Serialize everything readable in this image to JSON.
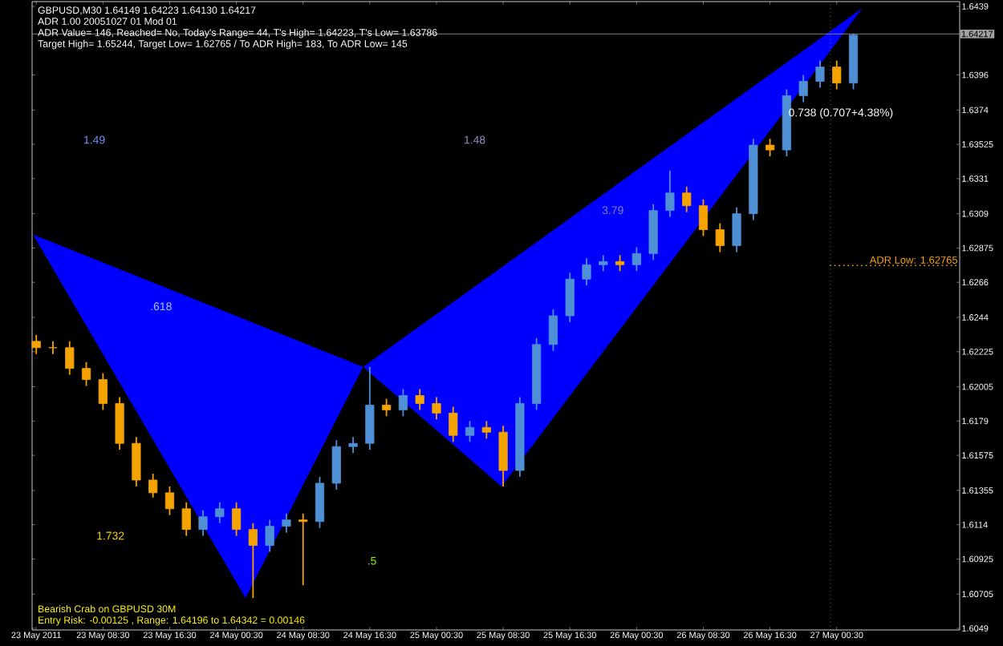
{
  "chart_data": {
    "type": "candlestick",
    "title": "GBPUSD,M30  1.64149 1.64223 1.64130 1.64217",
    "subtitle": "ADR 1.00 20051027 01 Mod 01",
    "annotations": [
      "ADR Value= 146, Reached= No, Today's Range= 44, T's High= 1.64223, T's Low= 1.63786",
      "Target High= 1.65244, Target Low= 1.62765 / To ADR High= 183, To ADR Low= 145",
      "Bearish Crab on GBPUSD 30M",
      "Entry Risk: -0.00125 , Range: 1.64196 to 1.64342 = 0.00146",
      ".618",
      "1.732",
      ".5",
      "3.79",
      "1.49",
      "1.48",
      "0.738 (0.707+4.38%)"
    ],
    "x": [
      "2011-05-23T00:30",
      "2011-05-23T02:30",
      "2011-05-23T04:30",
      "2011-05-23T06:30",
      "2011-05-23T08:30",
      "2011-05-23T10:30",
      "2011-05-23T12:30",
      "2011-05-23T14:30",
      "2011-05-23T16:30",
      "2011-05-23T18:30",
      "2011-05-23T20:30",
      "2011-05-23T22:30",
      "2011-05-24T00:30",
      "2011-05-24T02:30",
      "2011-05-24T04:30",
      "2011-05-24T06:30",
      "2011-05-24T08:30",
      "2011-05-24T10:30",
      "2011-05-24T12:30",
      "2011-05-24T14:30",
      "2011-05-24T16:30",
      "2011-05-24T18:30",
      "2011-05-24T20:30",
      "2011-05-24T22:30",
      "2011-05-25T00:30",
      "2011-05-25T02:30",
      "2011-05-25T04:30",
      "2011-05-25T06:30",
      "2011-05-25T08:30",
      "2011-05-25T10:30",
      "2011-05-25T12:30",
      "2011-05-25T14:30",
      "2011-05-25T16:30",
      "2011-05-25T18:30",
      "2011-05-25T20:30",
      "2011-05-25T22:30",
      "2011-05-26T00:30",
      "2011-05-26T02:30",
      "2011-05-26T04:30",
      "2011-05-26T06:30",
      "2011-05-26T08:30",
      "2011-05-26T10:30",
      "2011-05-26T12:30",
      "2011-05-26T14:30",
      "2011-05-26T16:30",
      "2011-05-26T18:30",
      "2011-05-26T20:30",
      "2011-05-26T22:30",
      "2011-05-27T00:30",
      "2011-05-27T02:30"
    ],
    "ohlc": [
      [
        1.6229,
        1.6233,
        1.6221,
        1.6225
      ],
      [
        1.6225,
        1.6229,
        1.6221,
        1.6225
      ],
      [
        1.6225,
        1.6229,
        1.6208,
        1.6212
      ],
      [
        1.6212,
        1.6216,
        1.6201,
        1.6205
      ],
      [
        1.6205,
        1.6209,
        1.6186,
        1.619
      ],
      [
        1.619,
        1.6194,
        1.6161,
        1.6165
      ],
      [
        1.6165,
        1.6169,
        1.6138,
        1.6142
      ],
      [
        1.6142,
        1.6146,
        1.6131,
        1.6134
      ],
      [
        1.6134,
        1.6138,
        1.612,
        1.6124
      ],
      [
        1.6124,
        1.6128,
        1.6107,
        1.6111
      ],
      [
        1.6111,
        1.6123,
        1.6107,
        1.6119
      ],
      [
        1.6119,
        1.6128,
        1.6115,
        1.6124
      ],
      [
        1.6124,
        1.6128,
        1.6107,
        1.6111
      ],
      [
        1.6111,
        1.6115,
        1.6068,
        1.6101
      ],
      [
        1.6101,
        1.6117,
        1.6097,
        1.6113
      ],
      [
        1.6113,
        1.6121,
        1.6109,
        1.6117
      ],
      [
        1.6117,
        1.6121,
        1.6076,
        1.6116
      ],
      [
        1.6116,
        1.6144,
        1.6112,
        1.614
      ],
      [
        1.614,
        1.6167,
        1.6136,
        1.6163
      ],
      [
        1.6163,
        1.6169,
        1.6159,
        1.6165
      ],
      [
        1.6165,
        1.6213,
        1.6161,
        1.6189
      ],
      [
        1.6189,
        1.6193,
        1.6182,
        1.6186
      ],
      [
        1.6186,
        1.6199,
        1.6182,
        1.6195
      ],
      [
        1.6195,
        1.6199,
        1.6186,
        1.619
      ],
      [
        1.619,
        1.6194,
        1.618,
        1.6184
      ],
      [
        1.6184,
        1.6188,
        1.6166,
        1.617
      ],
      [
        1.617,
        1.6179,
        1.6166,
        1.6175
      ],
      [
        1.6175,
        1.6179,
        1.6168,
        1.6172
      ],
      [
        1.6172,
        1.6176,
        1.6138,
        1.6148
      ],
      [
        1.6148,
        1.6194,
        1.6144,
        1.619
      ],
      [
        1.619,
        1.6231,
        1.6186,
        1.6227
      ],
      [
        1.6227,
        1.6249,
        1.6223,
        1.6245
      ],
      [
        1.6245,
        1.6272,
        1.6241,
        1.6268
      ],
      [
        1.6268,
        1.6281,
        1.6264,
        1.6277
      ],
      [
        1.6277,
        1.6283,
        1.6273,
        1.6279
      ],
      [
        1.6279,
        1.6283,
        1.6273,
        1.6277
      ],
      [
        1.6277,
        1.6288,
        1.6273,
        1.6284
      ],
      [
        1.6284,
        1.6315,
        1.628,
        1.6311
      ],
      [
        1.6311,
        1.6336,
        1.6307,
        1.6322
      ],
      [
        1.6322,
        1.6326,
        1.631,
        1.6314
      ],
      [
        1.6314,
        1.6318,
        1.6295,
        1.6299
      ],
      [
        1.6299,
        1.6303,
        1.6285,
        1.6289
      ],
      [
        1.6289,
        1.6313,
        1.6285,
        1.6309
      ],
      [
        1.6309,
        1.6356,
        1.6305,
        1.6352
      ],
      [
        1.6352,
        1.6356,
        1.6345,
        1.6349
      ],
      [
        1.6349,
        1.6387,
        1.6345,
        1.6383
      ],
      [
        1.6383,
        1.6396,
        1.6379,
        1.6392
      ],
      [
        1.6392,
        1.6405,
        1.6388,
        1.6401
      ],
      [
        1.6401,
        1.6405,
        1.6387,
        1.6391
      ],
      [
        1.6391,
        1.6422,
        1.6387,
        1.6421
      ]
    ],
    "colors": [
      "#f5a300",
      "#f5a300",
      "#f5a300",
      "#f5a300",
      "#f5a300",
      "#f5a300",
      "#f5a300",
      "#f5a300",
      "#f5a300",
      "#f5a300",
      "#4f8fd6",
      "#4f8fd6",
      "#f5a300",
      "#f5a300",
      "#4f8fd6",
      "#4f8fd6",
      "#f5a300",
      "#4f8fd6",
      "#4f8fd6",
      "#4f8fd6",
      "#4f8fd6",
      "#f5a300",
      "#4f8fd6",
      "#f5a300",
      "#f5a300",
      "#f5a300",
      "#4f8fd6",
      "#f5a300",
      "#f5a300",
      "#4f8fd6",
      "#4f8fd6",
      "#4f8fd6",
      "#4f8fd6",
      "#4f8fd6",
      "#4f8fd6",
      "#f5a300",
      "#4f8fd6",
      "#4f8fd6",
      "#4f8fd6",
      "#f5a300",
      "#f5a300",
      "#f5a300",
      "#4f8fd6",
      "#4f8fd6",
      "#f5a300",
      "#4f8fd6",
      "#4f8fd6",
      "#4f8fd6",
      "#f5a300",
      "#4f8fd6"
    ],
    "series": [
      {
        "type": "area",
        "color": "#0000ff",
        "x": [
          "2011-05-23T00:06",
          "2011-05-24T01:36",
          "2011-05-24T15:42",
          "2011-05-25T08:18",
          "2011-05-27T03:36"
        ],
        "values": [
          1.6296,
          1.6068,
          1.6213,
          1.6138,
          1.6438
        ]
      }
    ],
    "xlim": [
      "2011-05-23T00:00",
      "2011-05-27T15:15"
    ],
    "ylim": [
      1.6048,
      1.6442
    ],
    "xticks": [
      {
        "value": "2011-05-23T00:30",
        "label": "23 May 2011"
      },
      {
        "value": "2011-05-23T08:30",
        "label": "23 May 08:30"
      },
      {
        "value": "2011-05-23T16:30",
        "label": "23 May 16:30"
      },
      {
        "value": "2011-05-24T00:30",
        "label": "24 May 00:30"
      },
      {
        "value": "2011-05-24T08:30",
        "label": "24 May 08:30"
      },
      {
        "value": "2011-05-24T16:30",
        "label": "24 May 16:30"
      },
      {
        "value": "2011-05-25T00:30",
        "label": "25 May 00:30"
      },
      {
        "value": "2011-05-25T08:30",
        "label": "25 May 08:30"
      },
      {
        "value": "2011-05-25T16:30",
        "label": "25 May 16:30"
      },
      {
        "value": "2011-05-26T00:30",
        "label": "26 May 00:30"
      },
      {
        "value": "2011-05-26T08:30",
        "label": "26 May 08:30"
      },
      {
        "value": "2011-05-26T16:30",
        "label": "26 May 16:30"
      },
      {
        "value": "2011-05-27T00:30",
        "label": "27 May 00:30"
      }
    ],
    "yticks": [
      1.6049,
      1.60705,
      1.60925,
      1.6114,
      1.61355,
      1.61575,
      1.6179,
      1.62005,
      1.62225,
      1.6244,
      1.6266,
      1.62875,
      1.6309,
      1.6331,
      1.63525,
      1.6374,
      1.6396,
      1.6439
    ],
    "ref_lines": [
      {
        "axis": "y",
        "value": 1.64217,
        "label": "1.64217",
        "color": "#a0a0a0",
        "line_style": "solid"
      },
      {
        "axis": "y",
        "value": 1.62765,
        "label": "ADR Low: 1.62765",
        "color": "#f5a300",
        "line_style": "dotted"
      },
      {
        "axis": "x",
        "value": "2011-05-26T23:45",
        "color": "#a0a0a0",
        "line_style": "dotted"
      }
    ]
  }
}
